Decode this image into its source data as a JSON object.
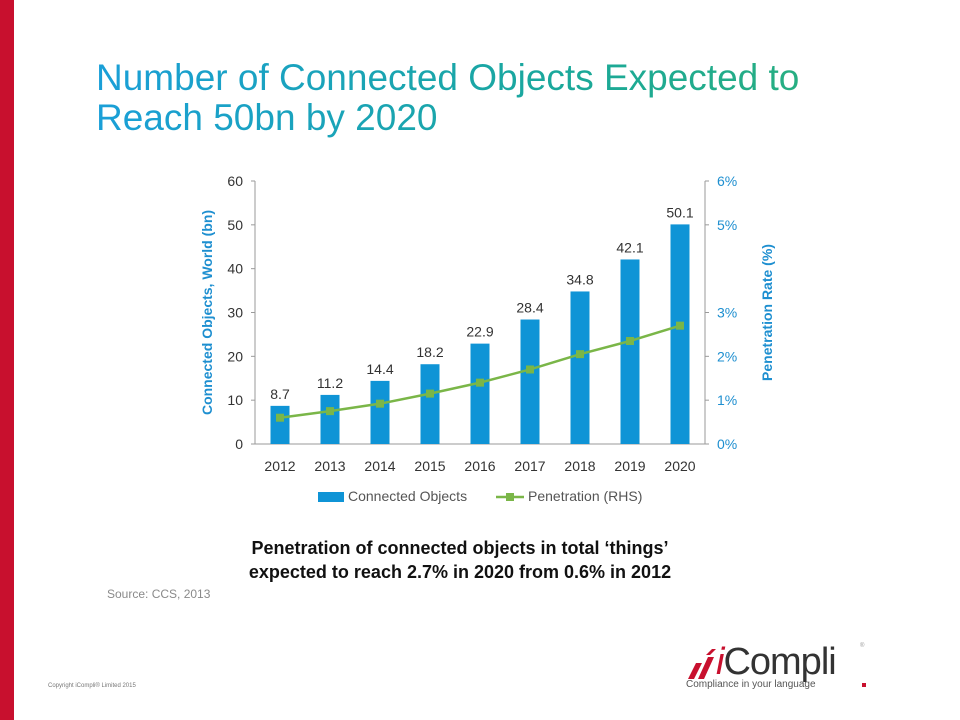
{
  "slide": {
    "title_line1": "Number of Connected Objects Expected to",
    "title_line2": "Reach 50bn by 2020",
    "caption_line1": "Penetration of connected objects in total ‘things’",
    "caption_line2": "expected to reach 2.7% in 2020 from 0.6% in 2012",
    "source": "Source: CCS, 2013",
    "copyright": "Copyright iCompli® Limited 2015",
    "logo_i": "i",
    "logo_name": "Compli",
    "logo_tagline": "Compliance in your language",
    "logo_reg": "®"
  },
  "colors": {
    "bar": "#0f94d6",
    "line": "#7ab648",
    "axis_text": "#1e8fd0",
    "tick_text": "#333333",
    "accent": "#c8102e"
  },
  "chart_data": {
    "type": "bar",
    "categories": [
      "2012",
      "2013",
      "2014",
      "2015",
      "2016",
      "2017",
      "2018",
      "2019",
      "2020"
    ],
    "series": [
      {
        "name": "Connected Objects",
        "type": "bar",
        "axis": "left",
        "values": [
          8.7,
          11.2,
          14.4,
          18.2,
          22.9,
          28.4,
          34.8,
          42.1,
          50.1
        ]
      },
      {
        "name": "Penetration (RHS)",
        "type": "line",
        "axis": "right",
        "values": [
          0.6,
          0.75,
          0.92,
          1.15,
          1.4,
          1.7,
          2.05,
          2.35,
          2.7
        ]
      }
    ],
    "ylabel": "Connected Objects, World (bn)",
    "y2label": "Penetration Rate (%)",
    "ylim": [
      0,
      60
    ],
    "y2lim": [
      0,
      6
    ],
    "yticks": [
      "0",
      "10",
      "20",
      "30",
      "40",
      "50",
      "60"
    ],
    "y2ticks": [
      "0%",
      "1%",
      "2%",
      "3%",
      "5%",
      "6%"
    ],
    "legend_position": "bottom"
  }
}
